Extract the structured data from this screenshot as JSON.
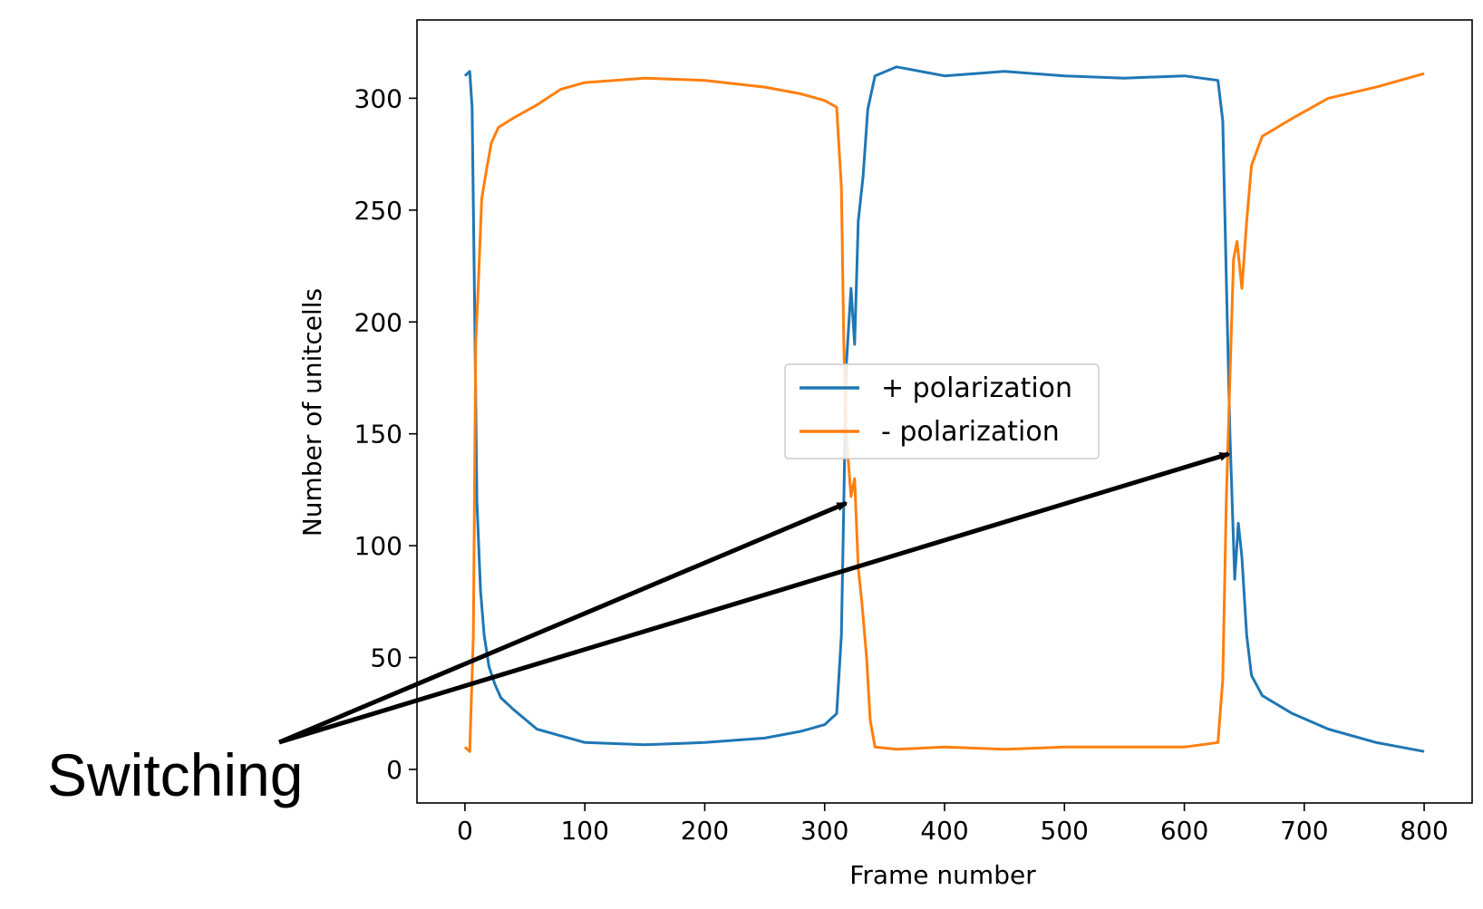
{
  "chart_data": {
    "type": "line",
    "title": "",
    "xlabel": "Frame number",
    "ylabel": "Number of unitcells",
    "xlim": [
      -40,
      840
    ],
    "ylim": [
      -15,
      335
    ],
    "xticks": [
      0,
      100,
      200,
      300,
      400,
      500,
      600,
      700,
      800
    ],
    "yticks": [
      0,
      50,
      100,
      150,
      200,
      250,
      300
    ],
    "grid": false,
    "legend_position": "center-right",
    "series": [
      {
        "name": "+ polarization",
        "color": "#1f77b4",
        "points": [
          [
            0,
            310
          ],
          [
            4,
            312
          ],
          [
            6,
            296
          ],
          [
            8,
            210
          ],
          [
            10,
            120
          ],
          [
            13,
            80
          ],
          [
            16,
            60
          ],
          [
            20,
            46
          ],
          [
            25,
            38
          ],
          [
            30,
            32
          ],
          [
            40,
            27
          ],
          [
            60,
            18
          ],
          [
            80,
            15
          ],
          [
            100,
            12
          ],
          [
            150,
            11
          ],
          [
            200,
            12
          ],
          [
            250,
            14
          ],
          [
            280,
            17
          ],
          [
            300,
            20
          ],
          [
            310,
            25
          ],
          [
            314,
            60
          ],
          [
            316,
            120
          ],
          [
            318,
            180
          ],
          [
            322,
            215
          ],
          [
            325,
            190
          ],
          [
            328,
            245
          ],
          [
            332,
            265
          ],
          [
            336,
            295
          ],
          [
            342,
            310
          ],
          [
            360,
            314
          ],
          [
            400,
            310
          ],
          [
            450,
            312
          ],
          [
            500,
            310
          ],
          [
            550,
            309
          ],
          [
            600,
            310
          ],
          [
            628,
            308
          ],
          [
            632,
            290
          ],
          [
            635,
            220
          ],
          [
            638,
            150
          ],
          [
            642,
            85
          ],
          [
            645,
            110
          ],
          [
            648,
            95
          ],
          [
            652,
            60
          ],
          [
            656,
            42
          ],
          [
            665,
            33
          ],
          [
            690,
            25
          ],
          [
            720,
            18
          ],
          [
            760,
            12
          ],
          [
            800,
            8
          ]
        ]
      },
      {
        "name": "- polarization",
        "color": "#ff7f0e",
        "points": [
          [
            0,
            10
          ],
          [
            4,
            8
          ],
          [
            7,
            60
          ],
          [
            9,
            190
          ],
          [
            11,
            215
          ],
          [
            14,
            255
          ],
          [
            18,
            268
          ],
          [
            22,
            280
          ],
          [
            28,
            287
          ],
          [
            40,
            291
          ],
          [
            60,
            297
          ],
          [
            80,
            304
          ],
          [
            100,
            307
          ],
          [
            150,
            309
          ],
          [
            200,
            308
          ],
          [
            250,
            305
          ],
          [
            280,
            302
          ],
          [
            300,
            299
          ],
          [
            310,
            296
          ],
          [
            314,
            260
          ],
          [
            316,
            190
          ],
          [
            318,
            150
          ],
          [
            322,
            122
          ],
          [
            325,
            130
          ],
          [
            328,
            90
          ],
          [
            331,
            75
          ],
          [
            335,
            50
          ],
          [
            338,
            22
          ],
          [
            342,
            10
          ],
          [
            360,
            9
          ],
          [
            400,
            10
          ],
          [
            450,
            9
          ],
          [
            500,
            10
          ],
          [
            550,
            10
          ],
          [
            600,
            10
          ],
          [
            628,
            12
          ],
          [
            632,
            40
          ],
          [
            635,
            120
          ],
          [
            638,
            175
          ],
          [
            641,
            228
          ],
          [
            644,
            236
          ],
          [
            648,
            215
          ],
          [
            652,
            245
          ],
          [
            656,
            270
          ],
          [
            665,
            283
          ],
          [
            690,
            291
          ],
          [
            720,
            300
          ],
          [
            760,
            305
          ],
          [
            800,
            311
          ]
        ]
      }
    ],
    "annotations": [
      {
        "text": "Switching",
        "arrows_to": [
          [
            318,
            119
          ],
          [
            637,
            141
          ]
        ]
      }
    ]
  }
}
